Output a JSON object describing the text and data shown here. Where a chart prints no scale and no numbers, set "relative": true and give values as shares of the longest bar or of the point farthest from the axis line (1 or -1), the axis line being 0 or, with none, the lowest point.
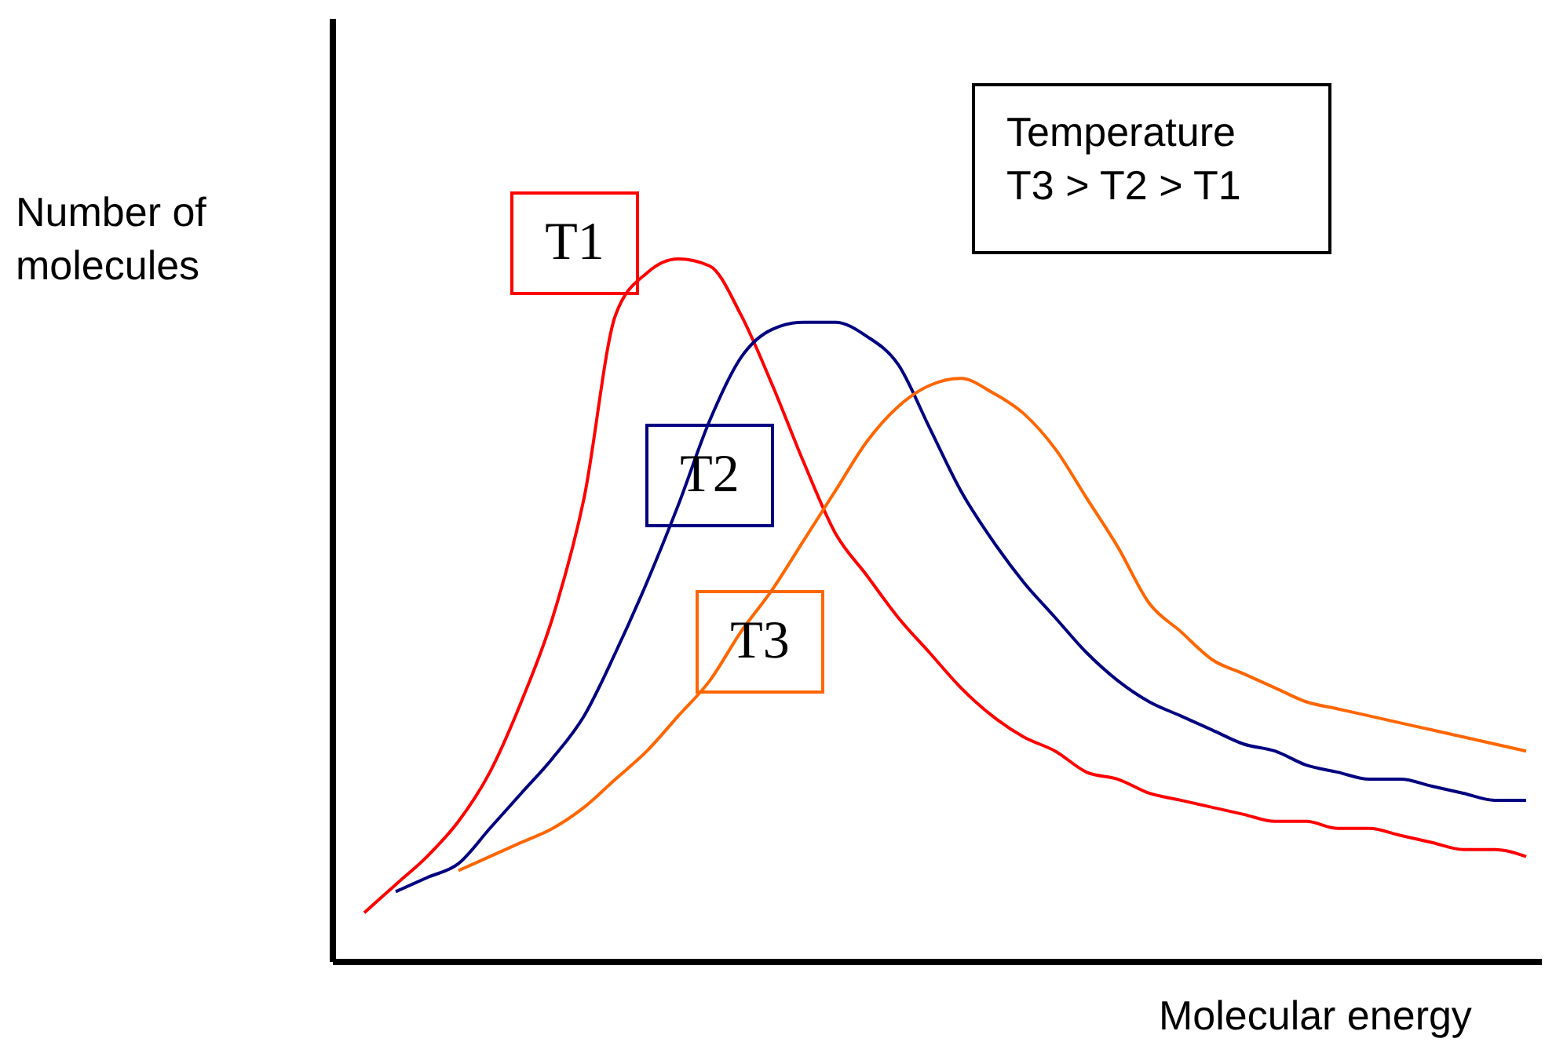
{
  "chart_data": {
    "type": "line",
    "relative": true,
    "xlabel": "Molecular energy",
    "ylabel": "Number of\nmolecules",
    "annotations": [
      "Temperature\nT3 > T2 > T1"
    ],
    "legend": false,
    "grid": false,
    "marker": "none",
    "line_style": "solid",
    "categories": [
      null,
      null,
      null,
      null,
      null,
      null,
      null,
      null,
      null,
      null,
      null,
      null,
      null,
      null,
      null,
      null,
      null,
      null,
      null,
      null,
      null,
      null,
      null,
      null,
      null,
      null,
      null,
      null,
      null,
      null,
      null,
      null,
      null,
      null,
      null,
      null,
      null,
      null
    ],
    "series": [
      {
        "name": "T1",
        "color": "#ff0000",
        "values": [
          0.07,
          0.11,
          0.15,
          0.2,
          0.27,
          0.37,
          0.49,
          0.66,
          0.92,
          0.98,
          1.0,
          0.99,
          0.92,
          0.82,
          0.71,
          0.61,
          0.55,
          0.49,
          0.44,
          0.39,
          0.35,
          0.32,
          0.3,
          0.27,
          0.26,
          0.24,
          0.23,
          0.22,
          0.21,
          0.2,
          0.2,
          0.19,
          0.19,
          0.18,
          0.17,
          0.16,
          0.16,
          0.15
        ]
      },
      {
        "name": "T2",
        "color": "#000080",
        "values": [
          null,
          0.1,
          0.12,
          0.14,
          0.19,
          0.24,
          0.29,
          0.35,
          0.44,
          0.54,
          0.65,
          0.77,
          0.86,
          0.9,
          0.91,
          0.91,
          0.89,
          0.85,
          0.76,
          0.67,
          0.6,
          0.54,
          0.49,
          0.44,
          0.4,
          0.37,
          0.35,
          0.33,
          0.31,
          0.3,
          0.28,
          0.27,
          0.26,
          0.26,
          0.25,
          0.24,
          0.23,
          0.23
        ]
      },
      {
        "name": "T3",
        "color": "#ff6600",
        "values": [
          null,
          null,
          null,
          0.13,
          0.15,
          0.17,
          0.19,
          0.22,
          0.26,
          0.3,
          0.35,
          0.4,
          0.47,
          0.53,
          0.6,
          0.67,
          0.74,
          0.79,
          0.82,
          0.83,
          0.81,
          0.78,
          0.73,
          0.66,
          0.59,
          0.51,
          0.47,
          0.43,
          0.41,
          0.39,
          0.37,
          0.36,
          0.35,
          0.34,
          0.33,
          0.32,
          0.31,
          0.3
        ]
      }
    ]
  }
}
